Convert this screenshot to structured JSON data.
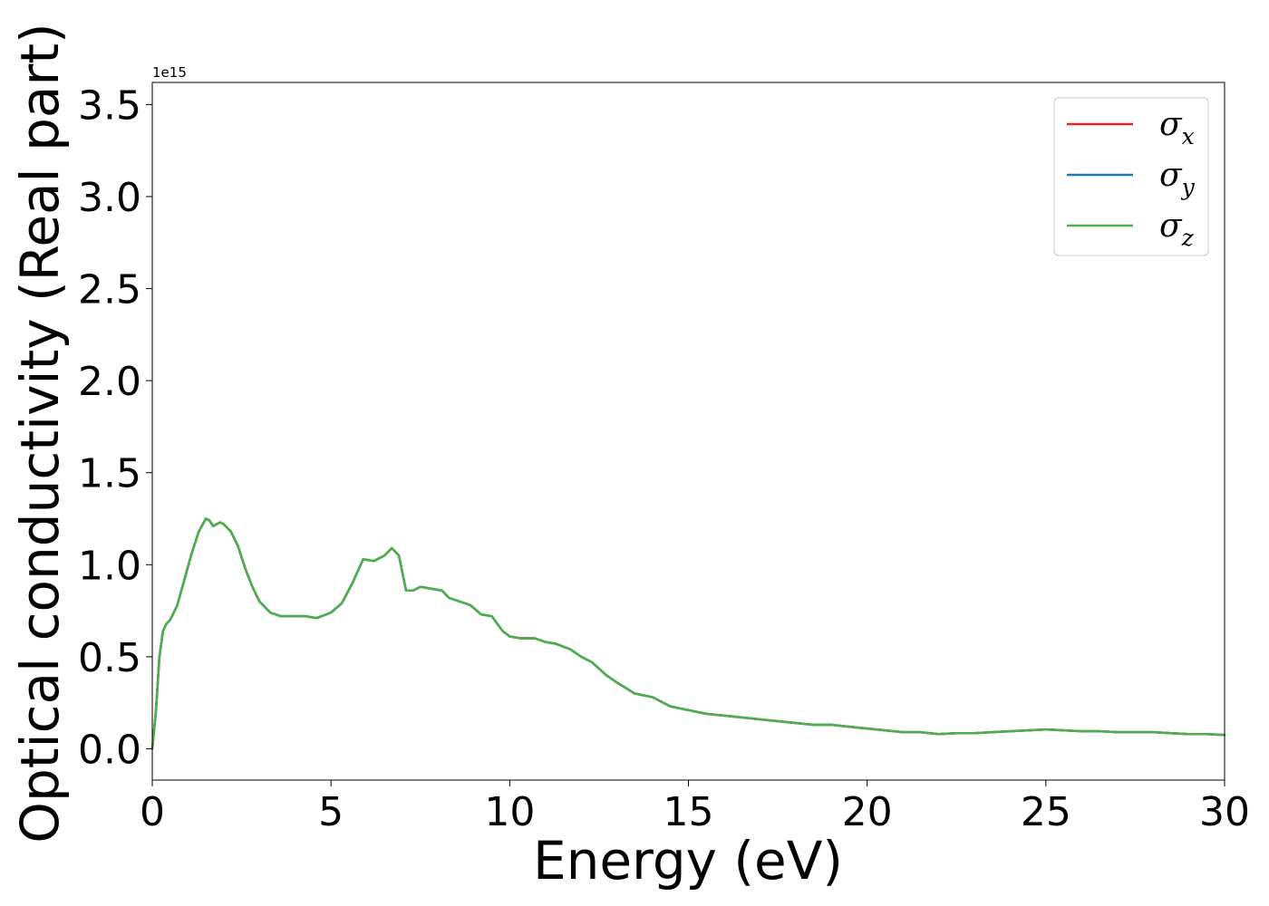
{
  "chart_data": {
    "type": "line",
    "title": "",
    "xlabel": "Energy (eV)",
    "ylabel": "Optical conductivity (Real part)",
    "y_offset_text": "1e15",
    "y_scale_factor": 1000000000000000.0,
    "xlim": [
      0,
      30
    ],
    "ylim": [
      -0.17,
      3.62
    ],
    "x_ticks": [
      0,
      5,
      10,
      15,
      20,
      25,
      30
    ],
    "x_tick_labels": [
      "0",
      "5",
      "10",
      "15",
      "20",
      "25",
      "30"
    ],
    "y_ticks": [
      0.0,
      0.5,
      1.0,
      1.5,
      2.0,
      2.5,
      3.0,
      3.5
    ],
    "y_tick_labels": [
      "0.0",
      "0.5",
      "1.0",
      "1.5",
      "2.0",
      "2.5",
      "3.0",
      "3.5"
    ],
    "grid": false,
    "legend_position": "top-right",
    "x": [
      0,
      0.1,
      0.2,
      0.3,
      0.4,
      0.5,
      0.7,
      0.9,
      1.1,
      1.3,
      1.5,
      1.6,
      1.7,
      1.8,
      1.9,
      2.0,
      2.2,
      2.4,
      2.6,
      2.8,
      3.0,
      3.3,
      3.6,
      4.0,
      4.3,
      4.6,
      5.0,
      5.3,
      5.6,
      5.9,
      6.2,
      6.5,
      6.7,
      6.9,
      7.1,
      7.3,
      7.5,
      7.8,
      8.1,
      8.3,
      8.6,
      8.9,
      9.2,
      9.5,
      9.8,
      10.0,
      10.3,
      10.7,
      11.0,
      11.3,
      11.7,
      12.0,
      12.3,
      12.7,
      13.0,
      13.5,
      14.0,
      14.5,
      15.0,
      15.5,
      16.0,
      16.5,
      17.0,
      17.5,
      18.0,
      18.5,
      19.0,
      19.5,
      20.0,
      20.5,
      21.0,
      21.5,
      22.0,
      22.5,
      23.0,
      23.5,
      24.0,
      24.5,
      25.0,
      25.5,
      26.0,
      26.5,
      27.0,
      27.5,
      28.0,
      28.5,
      29.0,
      29.5,
      30.0
    ],
    "series": [
      {
        "name": "σx",
        "color": "#d62728",
        "values": [
          0.0,
          0.2,
          0.5,
          0.64,
          0.68,
          0.7,
          0.78,
          0.92,
          1.06,
          1.18,
          1.25,
          1.24,
          1.21,
          1.22,
          1.23,
          1.22,
          1.18,
          1.1,
          0.98,
          0.88,
          0.8,
          0.74,
          0.72,
          0.72,
          0.72,
          0.71,
          0.74,
          0.79,
          0.9,
          1.03,
          1.02,
          1.05,
          1.09,
          1.05,
          0.86,
          0.86,
          0.88,
          0.87,
          0.86,
          0.82,
          0.8,
          0.78,
          0.73,
          0.72,
          0.64,
          0.61,
          0.6,
          0.6,
          0.58,
          0.57,
          0.54,
          0.5,
          0.47,
          0.4,
          0.36,
          0.3,
          0.28,
          0.23,
          0.21,
          0.19,
          0.18,
          0.17,
          0.16,
          0.15,
          0.14,
          0.13,
          0.13,
          0.12,
          0.11,
          0.1,
          0.09,
          0.09,
          0.08,
          0.085,
          0.085,
          0.09,
          0.095,
          0.1,
          0.105,
          0.1,
          0.095,
          0.095,
          0.09,
          0.09,
          0.09,
          0.085,
          0.08,
          0.08,
          0.075
        ]
      },
      {
        "name": "σy",
        "color": "#1f77b4",
        "values": [
          0.0,
          0.2,
          0.5,
          0.64,
          0.68,
          0.7,
          0.78,
          0.92,
          1.06,
          1.18,
          1.25,
          1.24,
          1.21,
          1.22,
          1.23,
          1.22,
          1.18,
          1.1,
          0.98,
          0.88,
          0.8,
          0.74,
          0.72,
          0.72,
          0.72,
          0.71,
          0.74,
          0.79,
          0.9,
          1.03,
          1.02,
          1.05,
          1.09,
          1.05,
          0.86,
          0.86,
          0.88,
          0.87,
          0.86,
          0.82,
          0.8,
          0.78,
          0.73,
          0.72,
          0.64,
          0.61,
          0.6,
          0.6,
          0.58,
          0.57,
          0.54,
          0.5,
          0.47,
          0.4,
          0.36,
          0.3,
          0.28,
          0.23,
          0.21,
          0.19,
          0.18,
          0.17,
          0.16,
          0.15,
          0.14,
          0.13,
          0.13,
          0.12,
          0.11,
          0.1,
          0.09,
          0.09,
          0.08,
          0.085,
          0.085,
          0.09,
          0.095,
          0.1,
          0.105,
          0.1,
          0.095,
          0.095,
          0.09,
          0.09,
          0.09,
          0.085,
          0.08,
          0.08,
          0.075
        ]
      },
      {
        "name": "σz",
        "color": "#4daf4a",
        "values": [
          0.0,
          0.2,
          0.5,
          0.64,
          0.68,
          0.7,
          0.78,
          0.92,
          1.06,
          1.18,
          1.25,
          1.24,
          1.21,
          1.22,
          1.23,
          1.22,
          1.18,
          1.1,
          0.98,
          0.88,
          0.8,
          0.74,
          0.72,
          0.72,
          0.72,
          0.71,
          0.74,
          0.79,
          0.9,
          1.03,
          1.02,
          1.05,
          1.09,
          1.05,
          0.86,
          0.86,
          0.88,
          0.87,
          0.86,
          0.82,
          0.8,
          0.78,
          0.73,
          0.72,
          0.64,
          0.61,
          0.6,
          0.6,
          0.58,
          0.57,
          0.54,
          0.5,
          0.47,
          0.4,
          0.36,
          0.3,
          0.28,
          0.23,
          0.21,
          0.19,
          0.18,
          0.17,
          0.16,
          0.15,
          0.14,
          0.13,
          0.13,
          0.12,
          0.11,
          0.1,
          0.09,
          0.09,
          0.08,
          0.085,
          0.085,
          0.09,
          0.095,
          0.1,
          0.105,
          0.1,
          0.095,
          0.095,
          0.09,
          0.09,
          0.09,
          0.085,
          0.08,
          0.08,
          0.075
        ]
      }
    ],
    "legend": [
      {
        "symbol": "σ",
        "subscript": "x",
        "color": "#d62728"
      },
      {
        "symbol": "σ",
        "subscript": "y",
        "color": "#1f77b4"
      },
      {
        "symbol": "σ",
        "subscript": "z",
        "color": "#4daf4a"
      }
    ]
  }
}
